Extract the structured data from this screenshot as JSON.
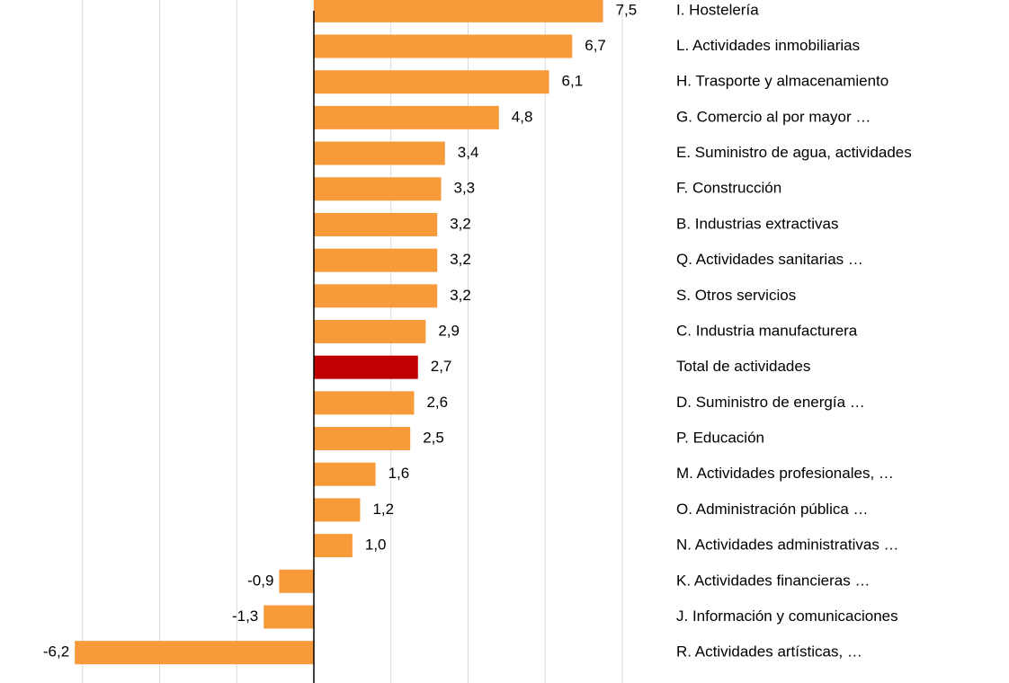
{
  "chart_data": {
    "type": "barh",
    "categories": [
      "I. Hostelería",
      "L. Actividades inmobiliarias",
      "H. Trasporte y almacenamiento",
      "G. Comercio al por mayor …",
      "E. Suministro de agua, actividades",
      "F. Construcción",
      "B. Industrias extractivas",
      "Q. Actividades sanitarias …",
      "S. Otros servicios",
      "C. Industria manufacturera",
      "Total de actividades",
      "D. Suministro de energía …",
      "P. Educación",
      "M. Actividades profesionales, …",
      "O. Administración pública …",
      "N. Actividades administrativas …",
      "K. Actividades financieras …",
      "J. Información y comunicaciones",
      "R. Actividades artísticas, …"
    ],
    "values": [
      7.5,
      6.7,
      6.1,
      4.8,
      3.4,
      3.3,
      3.2,
      3.2,
      3.2,
      2.9,
      2.7,
      2.6,
      2.5,
      1.6,
      1.2,
      1.0,
      -0.9,
      -1.3,
      -6.2
    ],
    "value_labels": [
      "7,5",
      "6,7",
      "6,1",
      "4,8",
      "3,4",
      "3,3",
      "3,2",
      "3,2",
      "3,2",
      "2,9",
      "2,7",
      "2,6",
      "2,5",
      "1,6",
      "1,2",
      "1,0",
      "-0,9",
      "-1,3",
      "-6,2"
    ],
    "colors": [
      "#f79a3a",
      "#f79a3a",
      "#f79a3a",
      "#f79a3a",
      "#f79a3a",
      "#f79a3a",
      "#f79a3a",
      "#f79a3a",
      "#f79a3a",
      "#f79a3a",
      "#c00000",
      "#f79a3a",
      "#f79a3a",
      "#f79a3a",
      "#f79a3a",
      "#f79a3a",
      "#f79a3a",
      "#f79a3a",
      "#f79a3a"
    ],
    "xlim": [
      -8,
      8
    ],
    "xticks": [
      -6,
      -4,
      -2,
      0,
      2,
      4,
      6,
      8
    ],
    "grid": true
  }
}
